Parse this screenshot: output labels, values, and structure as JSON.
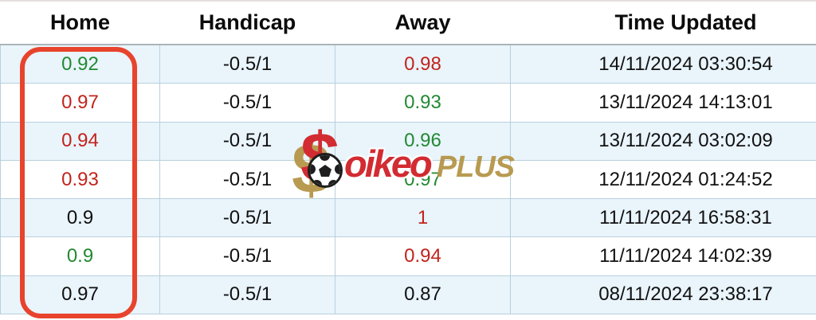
{
  "table": {
    "columns": [
      {
        "label": "Home"
      },
      {
        "label": "Handicap"
      },
      {
        "label": "Away"
      },
      {
        "label": "Time Updated"
      }
    ],
    "rows": [
      {
        "home": "0.92",
        "home_color": "green",
        "handicap": "-0.5/1",
        "away": "0.98",
        "away_color": "red",
        "time": "14/11/2024 03:30:54"
      },
      {
        "home": "0.97",
        "home_color": "red",
        "handicap": "-0.5/1",
        "away": "0.93",
        "away_color": "green",
        "time": "13/11/2024 14:13:01"
      },
      {
        "home": "0.94",
        "home_color": "red",
        "handicap": "-0.5/1",
        "away": "0.96",
        "away_color": "green",
        "time": "13/11/2024 03:02:09"
      },
      {
        "home": "0.93",
        "home_color": "red",
        "handicap": "-0.5/1",
        "away": "0.97",
        "away_color": "green",
        "time": "12/11/2024 01:24:52"
      },
      {
        "home": "0.9",
        "home_color": "black",
        "handicap": "-0.5/1",
        "away": "1",
        "away_color": "red",
        "time": "11/11/2024 16:58:31"
      },
      {
        "home": "0.9",
        "home_color": "green",
        "handicap": "-0.5/1",
        "away": "0.94",
        "away_color": "red",
        "time": "11/11/2024 14:02:39"
      },
      {
        "home": "0.97",
        "home_color": "black",
        "handicap": "-0.5/1",
        "away": "0.87",
        "away_color": "black",
        "time": "08/11/2024 23:38:17"
      }
    ]
  },
  "colors": {
    "green": "#218a32",
    "red": "#c1241d",
    "black": "#111111",
    "highlight_border": "#e8432c",
    "row_alt_bg": "#e9f4fb",
    "grid_line": "#b9d0dd",
    "logo_red": "#d2232a",
    "logo_gold": "#b6974a"
  },
  "watermark": {
    "dollar_symbol": "$",
    "name": "oikeo",
    "suffix": "PLUS",
    "ball_icon": "soccer-ball"
  }
}
